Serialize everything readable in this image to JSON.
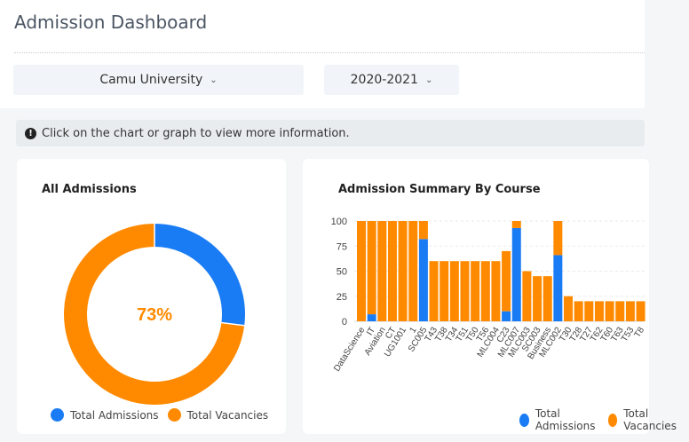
{
  "header": {
    "title": "Admission Dashboard"
  },
  "filters": {
    "university": "Camu University",
    "year": "2020-2021"
  },
  "info": {
    "message": "Click on the chart or graph to view more information."
  },
  "colors": {
    "admissions": "#1a7cf5",
    "vacancies": "#ff8a00"
  },
  "icons": {
    "chevron": "chevron-down-icon",
    "info": "exclamation-circle-icon"
  },
  "all_admissions": {
    "title": "All Admissions",
    "center_label": "73%",
    "legend": [
      "Total Admissions",
      "Total Vacancies"
    ]
  },
  "course_summary": {
    "title": "Admission Summary By Course",
    "legend": [
      "Total Admissions",
      "Total Vacancies"
    ]
  },
  "chart_data": [
    {
      "type": "pie",
      "title": "All Admissions",
      "labels": [
        "Total Admissions",
        "Total Vacancies"
      ],
      "values": [
        27,
        73
      ],
      "center_text": "73%",
      "legend_placement": "bottom"
    },
    {
      "type": "bar",
      "stacked": true,
      "title": "Admission Summary By Course",
      "categories": [
        "DataScience",
        "IT",
        "Aviation",
        "CT",
        "UG1001",
        "1",
        "SC005",
        "T43",
        "T38",
        "T34",
        "T51",
        "T50",
        "T56",
        "MLC004",
        "C23",
        "MLC007",
        "MLC003",
        "SC003",
        "Business",
        "MLC002",
        "T30",
        "T28",
        "T27",
        "T62",
        "T60",
        "T63",
        "T53",
        "T8"
      ],
      "series": [
        {
          "name": "Total Admissions",
          "values": [
            0,
            7,
            0,
            0,
            0,
            0,
            82,
            0,
            0,
            0,
            0,
            0,
            0,
            0,
            10,
            93,
            0,
            0,
            0,
            66,
            0,
            0,
            0,
            0,
            0,
            0,
            0,
            0
          ]
        },
        {
          "name": "Total Vacancies",
          "values": [
            100,
            93,
            100,
            100,
            100,
            100,
            18,
            60,
            60,
            60,
            60,
            60,
            60,
            60,
            60,
            7,
            50,
            45,
            45,
            34,
            25,
            20,
            20,
            20,
            20,
            20,
            20,
            20
          ]
        }
      ],
      "ylim": [
        0,
        100
      ],
      "yticks": [
        0,
        25,
        50,
        75,
        100
      ],
      "grid": true,
      "legend_placement": "bottom-right"
    }
  ]
}
